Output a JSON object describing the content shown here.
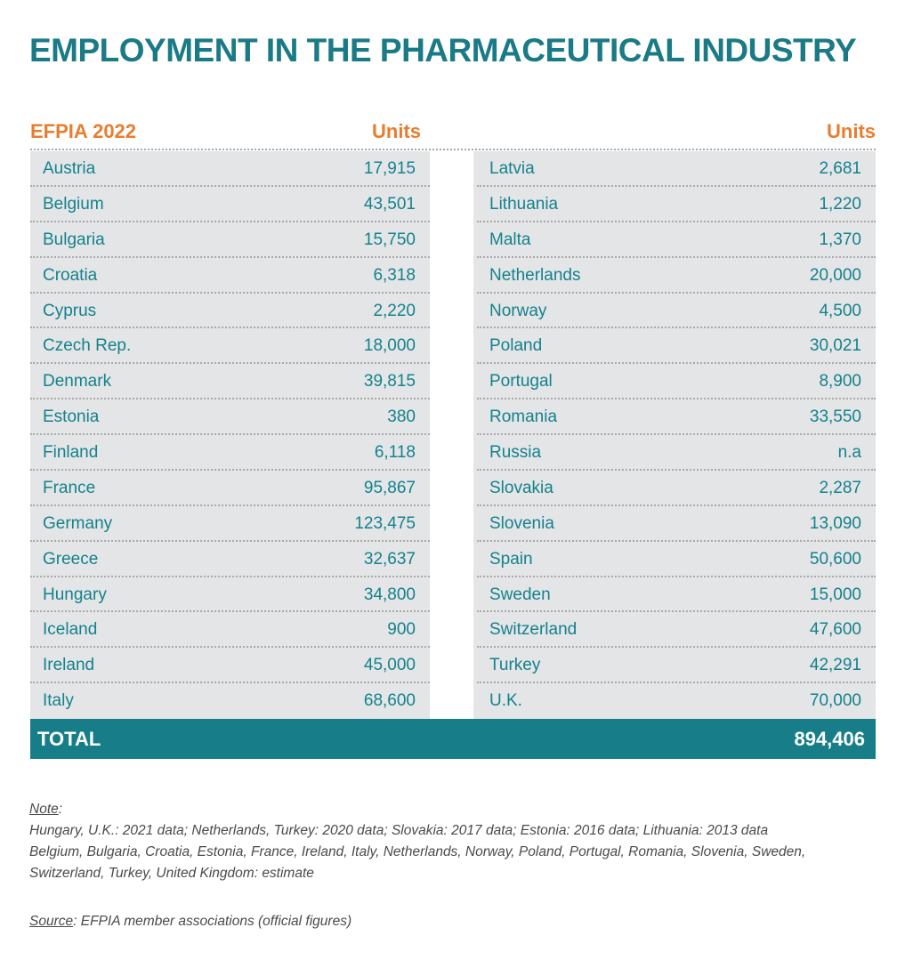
{
  "title": "EMPLOYMENT IN THE PHARMACEUTICAL INDUSTRY",
  "header": {
    "left_label": "EFPIA 2022",
    "units_left": "Units",
    "units_right": "Units"
  },
  "left_rows": [
    {
      "country": "Austria",
      "value": "17,915"
    },
    {
      "country": "Belgium",
      "value": "43,501"
    },
    {
      "country": "Bulgaria",
      "value": "15,750"
    },
    {
      "country": "Croatia",
      "value": "6,318"
    },
    {
      "country": "Cyprus",
      "value": "2,220"
    },
    {
      "country": "Czech Rep.",
      "value": "18,000"
    },
    {
      "country": "Denmark",
      "value": "39,815"
    },
    {
      "country": "Estonia",
      "value": "380"
    },
    {
      "country": "Finland",
      "value": "6,118"
    },
    {
      "country": "France",
      "value": "95,867"
    },
    {
      "country": "Germany",
      "value": "123,475"
    },
    {
      "country": "Greece",
      "value": "32,637"
    },
    {
      "country": "Hungary",
      "value": "34,800"
    },
    {
      "country": "Iceland",
      "value": "900"
    },
    {
      "country": "Ireland",
      "value": "45,000"
    },
    {
      "country": "Italy",
      "value": "68,600"
    }
  ],
  "right_rows": [
    {
      "country": "Latvia",
      "value": "2,681"
    },
    {
      "country": "Lithuania",
      "value": "1,220"
    },
    {
      "country": "Malta",
      "value": "1,370"
    },
    {
      "country": "Netherlands",
      "value": "20,000"
    },
    {
      "country": "Norway",
      "value": "4,500"
    },
    {
      "country": "Poland",
      "value": "30,021"
    },
    {
      "country": "Portugal",
      "value": "8,900"
    },
    {
      "country": "Romania",
      "value": "33,550"
    },
    {
      "country": "Russia",
      "value": "n.a"
    },
    {
      "country": "Slovakia",
      "value": "2,287"
    },
    {
      "country": "Slovenia",
      "value": "13,090"
    },
    {
      "country": "Spain",
      "value": "50,600"
    },
    {
      "country": "Sweden",
      "value": "15,000"
    },
    {
      "country": "Switzerland",
      "value": "47,600"
    },
    {
      "country": "Turkey",
      "value": "42,291"
    },
    {
      "country": "U.K.",
      "value": "70,000"
    }
  ],
  "total": {
    "label": "TOTAL",
    "value": "894,406"
  },
  "note": {
    "heading": "Note",
    "line1": "Hungary, U.K.: 2021 data; Netherlands, Turkey: 2020 data; Slovakia: 2017 data; Estonia: 2016 data; Lithuania: 2013 data",
    "line2": "Belgium, Bulgaria, Croatia, Estonia, France, Ireland, Italy, Netherlands, Norway, Poland, Portugal, Romania, Slovenia, Sweden,",
    "line3": "Switzerland, Turkey, United Kingdom: estimate"
  },
  "source": {
    "heading": "Source",
    "text": ": EFPIA member associations (official figures)"
  },
  "colors": {
    "title": "#1a7a86",
    "header_accent": "#e97d2f",
    "row_text": "#14828c",
    "table_bg": "#e4e5e7",
    "total_bg": "#177e89"
  }
}
